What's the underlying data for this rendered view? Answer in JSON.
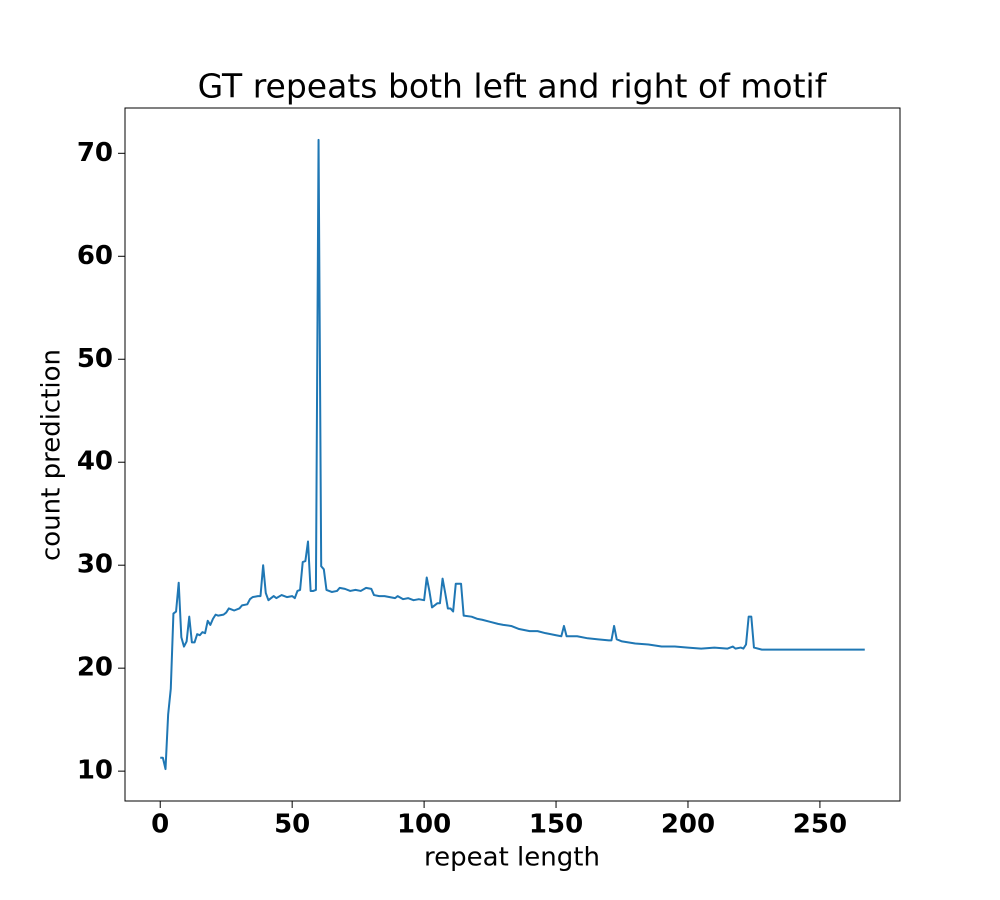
{
  "chart_data": {
    "type": "line",
    "title": "GT repeats both left and right of motif",
    "x_label": "repeat length",
    "y_label": "count prediction",
    "xlim": [
      -13.35,
      280.35
    ],
    "ylim": [
      7.1,
      74.4
    ],
    "xticks": [
      0,
      50,
      100,
      150,
      200,
      250
    ],
    "yticks": [
      10,
      20,
      30,
      40,
      50,
      60,
      70
    ],
    "series": [
      {
        "color": "#1f77b4",
        "x": [
          0,
          1,
          2,
          3,
          4,
          5,
          6,
          7,
          8,
          9,
          10,
          11,
          12,
          13,
          14,
          15,
          16,
          17,
          18,
          19,
          20,
          21,
          22,
          24,
          25,
          26,
          27,
          28,
          30,
          31,
          33,
          34,
          35,
          37,
          38,
          39,
          40,
          41,
          43,
          44,
          46,
          48,
          50,
          51,
          52,
          53,
          54,
          55,
          56,
          57,
          58,
          59,
          60,
          61,
          62,
          63,
          65,
          67,
          68,
          70,
          72,
          74,
          76,
          78,
          80,
          81,
          83,
          85,
          87,
          89,
          90,
          92,
          94,
          96,
          98,
          100,
          101,
          102,
          103,
          105,
          106,
          107,
          108,
          109,
          110,
          111,
          112,
          114,
          115,
          118,
          120,
          122,
          125,
          128,
          130,
          133,
          136,
          140,
          143,
          146,
          150,
          152,
          153,
          154,
          158,
          162,
          166,
          170,
          171,
          172,
          173,
          175,
          180,
          185,
          190,
          195,
          200,
          205,
          210,
          215,
          217,
          218,
          220,
          221,
          222,
          223,
          224,
          225,
          228,
          235,
          245,
          255,
          260,
          267
        ],
        "values": [
          11.3,
          11.3,
          10.2,
          15.5,
          18,
          25.3,
          25.5,
          28.3,
          23,
          22.1,
          22.6,
          25,
          22.5,
          22.5,
          23.3,
          23.2,
          23.5,
          23.4,
          24.6,
          24.2,
          24.8,
          25.2,
          25.1,
          25.2,
          25.4,
          25.8,
          25.7,
          25.6,
          25.8,
          26.1,
          26.2,
          26.7,
          26.9,
          27,
          27,
          30,
          27.3,
          26.6,
          27,
          26.8,
          27.1,
          26.9,
          27,
          26.8,
          27.5,
          27.6,
          30.3,
          30.4,
          32.3,
          27.5,
          27.5,
          27.6,
          71.3,
          29.9,
          29.6,
          27.6,
          27.4,
          27.5,
          27.8,
          27.7,
          27.5,
          27.6,
          27.5,
          27.8,
          27.7,
          27.1,
          27,
          27,
          26.9,
          26.8,
          27,
          26.7,
          26.8,
          26.6,
          26.7,
          26.6,
          28.8,
          27.5,
          25.9,
          26.3,
          26.3,
          28.7,
          27.3,
          25.8,
          25.8,
          25.5,
          28.2,
          28.2,
          25.1,
          25,
          24.8,
          24.7,
          24.5,
          24.3,
          24.2,
          24.1,
          23.8,
          23.6,
          23.6,
          23.4,
          23.2,
          23.1,
          24.1,
          23.1,
          23.1,
          22.9,
          22.8,
          22.7,
          22.7,
          24.1,
          22.8,
          22.6,
          22.4,
          22.3,
          22.1,
          22.1,
          22,
          21.9,
          22,
          21.9,
          22.1,
          21.9,
          22,
          21.9,
          22.3,
          25,
          25,
          22,
          21.8,
          21.8,
          21.8,
          21.8,
          21.8,
          21.8
        ]
      }
    ]
  }
}
